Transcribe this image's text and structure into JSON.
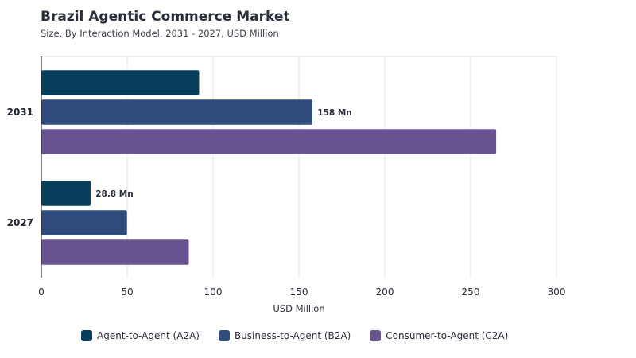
{
  "header": {
    "title": "Brazil Agentic Commerce Market",
    "subtitle": "Size, By Interaction Model, 2031 - 2027, USD Million"
  },
  "chart_data": {
    "type": "bar",
    "orientation": "horizontal",
    "categories": [
      "2031",
      "2027"
    ],
    "series": [
      {
        "name": "Agent-to-Agent (A2A)",
        "color": "#073f5c",
        "values": [
          92,
          28.8
        ]
      },
      {
        "name": "Business-to-Agent (B2A)",
        "color": "#2f4b7c",
        "values": [
          158,
          50
        ]
      },
      {
        "name": "Consumer-to-Agent (C2A)",
        "color": "#67538f",
        "values": [
          265,
          86
        ]
      }
    ],
    "data_labels": [
      {
        "series": 1,
        "category": 0,
        "text": "158 Mn"
      },
      {
        "series": 0,
        "category": 1,
        "text": "28.8 Mn"
      }
    ],
    "xlabel": "USD Million",
    "xlim": [
      0,
      300
    ],
    "xticks": [
      0,
      50,
      100,
      150,
      200,
      250,
      300
    ],
    "grid": true,
    "legend": "bottom"
  }
}
